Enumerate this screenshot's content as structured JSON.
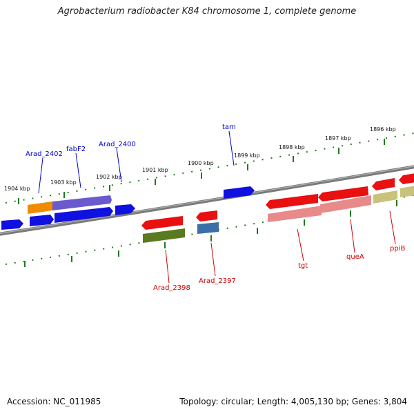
{
  "title": "Agrobacterium radiobacter K84 chromosome 1, complete genome",
  "footer": {
    "accession": "Accession: NC_011985",
    "summary": "Topology: circular; Length: 4,005,130 bp; Genes: 3,804"
  },
  "colors": {
    "backbone": "#808080",
    "tick": "#1f7a1f",
    "forward_label": "#0000cc",
    "reverse_label": "#cc0000"
  },
  "kbp_labels": [
    "1904 kbp",
    "1903 kbp",
    "1902 kbp",
    "1901 kbp",
    "1900 kbp",
    "1899 kbp",
    "1898 kbp",
    "1897 kbp",
    "1896 kbp"
  ],
  "gene_labels": {
    "forward": [
      "Arad_2402",
      "fabF2",
      "Arad_2400",
      "tam"
    ],
    "reverse": [
      "Arad_2398",
      "Arad_2397",
      "tgt",
      "queA",
      "ppiB"
    ]
  }
}
